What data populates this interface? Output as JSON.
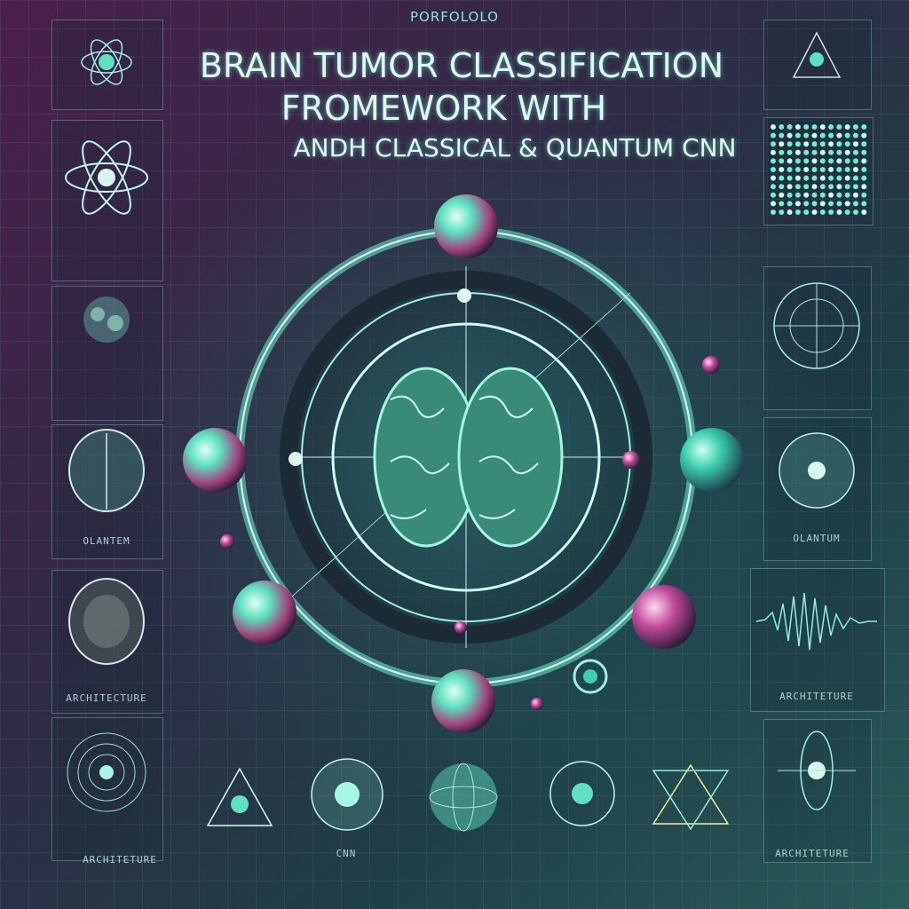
{
  "header": {
    "brand": "PORFOLOLO",
    "title_line1": "BRAIN TUMOR CLASSIFICATION",
    "title_line2": "FROMEWORK  WITH",
    "title_line3": "ANDH CLASSICAL & QUANTUM CNN"
  },
  "left_column": {
    "captions": [
      "",
      "OLANTEM",
      "ARCHITECTURE"
    ]
  },
  "right_column": {
    "captions": [
      "OLANTUM",
      "ARCHITETURE"
    ]
  },
  "bottom_row": {
    "captions": [
      "ARCHITETURE",
      "CNN",
      "ARCHITETURE"
    ]
  },
  "colors": {
    "accent": "#6ff0d0",
    "magenta": "#c04a9a",
    "teal_sphere": "#3fd0b0"
  }
}
